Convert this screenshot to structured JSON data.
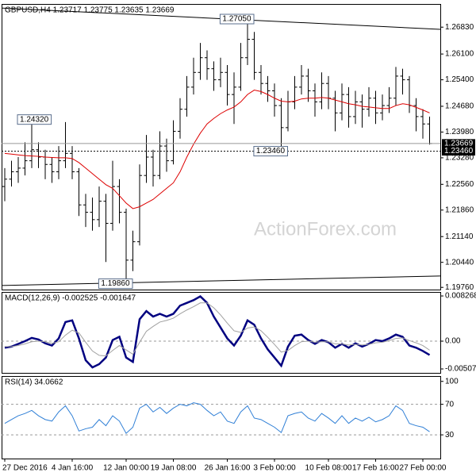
{
  "chart_data": [
    {
      "type": "ohlc",
      "title": "GBPUSD,H4  1.23717 1.23775 1.23635 1.23669",
      "categories": [
        "27 Dec 2016",
        null,
        null,
        null,
        null,
        null,
        null,
        null,
        null,
        null,
        "4 Jan 16:00",
        null,
        null,
        null,
        null,
        null,
        null,
        null,
        "12 Jan 00:00",
        null,
        null,
        null,
        null,
        null,
        null,
        "19 Jan 08:00",
        null,
        null,
        null,
        null,
        null,
        null,
        null,
        "26 Jan 16:00",
        null,
        null,
        null,
        null,
        null,
        null,
        "3 Feb 00:00",
        null,
        null,
        null,
        null,
        null,
        null,
        null,
        "10 Feb 08:00",
        null,
        null,
        null,
        null,
        null,
        null,
        "17 Feb 16:00",
        null,
        null,
        null,
        null,
        null,
        null,
        "27 Feb 00:00",
        null
      ],
      "open": [
        1.225,
        1.227,
        1.229,
        1.23,
        1.232,
        1.235,
        1.233,
        1.231,
        1.229,
        1.232,
        1.234,
        1.229,
        1.22,
        1.218,
        1.216,
        1.221,
        1.215,
        1.225,
        1.218,
        1.205,
        1.21,
        1.228,
        1.233,
        1.228,
        1.236,
        1.232,
        1.24,
        1.246,
        1.252,
        1.256,
        1.26,
        1.257,
        1.254,
        1.256,
        1.25,
        1.252,
        1.26,
        1.265,
        1.256,
        1.253,
        1.251,
        1.247,
        1.241,
        1.248,
        1.252,
        1.255,
        1.251,
        1.248,
        1.253,
        1.249,
        1.245,
        1.25,
        1.244,
        1.248,
        1.246,
        1.249,
        1.245,
        1.247,
        1.249,
        1.255,
        1.254,
        1.247,
        1.244,
        1.242
      ],
      "high": [
        1.23,
        1.232,
        1.233,
        1.237,
        1.2432,
        1.237,
        1.235,
        1.233,
        1.236,
        1.2425,
        1.236,
        1.23,
        1.223,
        1.222,
        1.225,
        1.223,
        1.232,
        1.227,
        1.219,
        1.213,
        1.231,
        1.239,
        1.235,
        1.24,
        1.238,
        1.243,
        1.249,
        1.255,
        1.26,
        1.264,
        1.262,
        1.259,
        1.26,
        1.258,
        1.256,
        1.264,
        1.2705,
        1.267,
        1.258,
        1.255,
        1.253,
        1.249,
        1.251,
        1.255,
        1.258,
        1.257,
        1.253,
        1.256,
        1.255,
        1.251,
        1.253,
        1.252,
        1.251,
        1.25,
        1.252,
        1.251,
        1.25,
        1.252,
        1.2575,
        1.257,
        1.255,
        1.249,
        1.246,
        1.244
      ],
      "low": [
        1.221,
        1.225,
        1.226,
        1.228,
        1.23,
        1.23,
        1.227,
        1.226,
        1.227,
        1.23,
        1.227,
        1.217,
        1.214,
        1.213,
        1.214,
        1.2045,
        1.213,
        1.215,
        1.1986,
        1.202,
        1.209,
        1.226,
        1.225,
        1.227,
        1.229,
        1.231,
        1.238,
        1.244,
        1.25,
        1.254,
        1.254,
        1.251,
        1.252,
        1.247,
        1.242,
        1.251,
        1.258,
        1.254,
        1.25,
        1.248,
        1.244,
        1.2346,
        1.24,
        1.246,
        1.25,
        1.248,
        1.244,
        1.246,
        1.246,
        1.24,
        1.243,
        1.241,
        1.242,
        1.241,
        1.244,
        1.242,
        1.243,
        1.245,
        1.247,
        1.25,
        1.245,
        1.24,
        1.238,
        1.2364
      ],
      "close": [
        1.227,
        1.229,
        1.23,
        1.232,
        1.235,
        1.233,
        1.231,
        1.229,
        1.232,
        1.234,
        1.229,
        1.22,
        1.218,
        1.216,
        1.221,
        1.215,
        1.225,
        1.218,
        1.205,
        1.21,
        1.228,
        1.233,
        1.228,
        1.236,
        1.232,
        1.24,
        1.246,
        1.252,
        1.256,
        1.26,
        1.257,
        1.254,
        1.256,
        1.25,
        1.252,
        1.26,
        1.265,
        1.256,
        1.253,
        1.251,
        1.247,
        1.241,
        1.248,
        1.252,
        1.255,
        1.251,
        1.248,
        1.253,
        1.249,
        1.245,
        1.25,
        1.244,
        1.248,
        1.246,
        1.249,
        1.245,
        1.247,
        1.249,
        1.255,
        1.254,
        1.247,
        1.244,
        1.242,
        1.23669
      ],
      "color": "#000000",
      "series": [
        {
          "color": "#dd0000",
          "values": [
            1.234,
            1.2338,
            1.2336,
            1.2334,
            1.2333,
            1.2332,
            1.233,
            1.2329,
            1.2328,
            1.2328,
            1.2326,
            1.2315,
            1.23,
            1.2285,
            1.227,
            1.2255,
            1.2245,
            1.2225,
            1.2205,
            1.219,
            1.2195,
            1.2205,
            1.2215,
            1.223,
            1.2245,
            1.226,
            1.229,
            1.233,
            1.2365,
            1.2395,
            1.242,
            1.2435,
            1.2448,
            1.2458,
            1.2466,
            1.248,
            1.25,
            1.2512,
            1.2508,
            1.25,
            1.249,
            1.2482,
            1.248,
            1.2482,
            1.2488,
            1.249,
            1.249,
            1.2492,
            1.249,
            1.2485,
            1.248,
            1.2475,
            1.2472,
            1.2468,
            1.2466,
            1.2464,
            1.2462,
            1.2462,
            1.247,
            1.2475,
            1.2472,
            1.2465,
            1.2458,
            1.245
          ]
        }
      ],
      "ylim": [
        1.197,
        1.2746
      ],
      "yticks": [
        {
          "value": 1.2683,
          "label": "1.26830"
        },
        {
          "value": 1.261,
          "label": "1.26100"
        },
        {
          "value": 1.254,
          "label": "1.25400"
        },
        {
          "value": 1.2468,
          "label": "1.24680"
        },
        {
          "value": 1.2398,
          "label": "1.23980"
        },
        {
          "value": 1.2328,
          "label": "1.23280"
        },
        {
          "value": 1.2256,
          "label": "1.22560"
        },
        {
          "value": 1.2186,
          "label": "1.21860"
        },
        {
          "value": 1.2114,
          "label": "1.21140"
        },
        {
          "value": 1.2044,
          "label": "1.20440"
        },
        {
          "value": 1.1976,
          "label": "1.19760"
        }
      ],
      "current": {
        "value": 1.23669,
        "label": "1.23669"
      },
      "level": {
        "value": 1.2346,
        "label": "1.23460"
      },
      "annotations": [
        {
          "index": 36,
          "value": 1.2705,
          "label": "1.27050"
        },
        {
          "index": 4,
          "value": 1.2432,
          "label": "1.24320"
        },
        {
          "index": 41,
          "value": 1.2346,
          "label": "1.23460"
        },
        {
          "index": 18,
          "value": 1.1986,
          "label": "1.19860"
        }
      ],
      "trendlines": [
        [
          1.2735,
          1.2677
        ],
        [
          1.1981,
          1.2007
        ]
      ],
      "watermark": "ActionForex.com"
    },
    {
      "type": "line",
      "title": "MACD(12,26,9) -0.002525 -0.001647",
      "series": [
        {
          "color": "#000080",
          "width": 2.5,
          "values": [
            -0.0012,
            -0.001,
            -0.0005,
            0.0,
            0.0006,
            0.0003,
            -0.0004,
            -0.0008,
            0.0005,
            0.0035,
            0.0038,
            0.0005,
            -0.0035,
            -0.0048,
            -0.0042,
            -0.003,
            0.0002,
            0.0008,
            -0.003,
            -0.0038,
            0.004,
            0.0055,
            0.0045,
            0.005,
            0.0045,
            0.005,
            0.0065,
            0.007,
            0.0075,
            0.0082,
            0.007,
            0.0045,
            0.0025,
            0.0005,
            -0.0008,
            0.001,
            0.0038,
            0.003,
            0.0005,
            -0.0015,
            -0.003,
            -0.0045,
            -0.001,
            0.001,
            0.0012,
            0.0002,
            -0.0005,
            0.0002,
            -0.0002,
            -0.0012,
            -0.0005,
            -0.0012,
            -0.0004,
            -0.001,
            -0.0005,
            0.0002,
            0.0,
            0.0005,
            0.0012,
            0.0008,
            -0.0008,
            -0.0012,
            -0.0018,
            -0.002525
          ]
        },
        {
          "color": "#a0a0a0",
          "width": 1,
          "values": [
            -0.001,
            -0.001,
            -0.0008,
            -0.0005,
            -0.0001,
            0.0,
            -0.0001,
            -0.0004,
            -0.0001,
            0.0011,
            0.002,
            0.0015,
            -0.0002,
            -0.0018,
            -0.0026,
            -0.0027,
            -0.0017,
            -0.0008,
            -0.0016,
            -0.0024,
            -0.0002,
            0.0018,
            0.0027,
            0.0035,
            0.0038,
            0.0042,
            0.005,
            0.0057,
            0.0063,
            0.007,
            0.007,
            0.0061,
            0.0048,
            0.0033,
            0.0019,
            0.0016,
            0.0024,
            0.0026,
            0.0019,
            0.0007,
            -0.0006,
            -0.002,
            -0.0017,
            -0.0008,
            -0.0001,
            0.0,
            -0.0002,
            -0.0001,
            -0.0001,
            -0.0005,
            -0.0005,
            -0.0007,
            -0.0006,
            -0.0007,
            -0.0006,
            -0.0003,
            -0.0002,
            0.0001,
            0.0005,
            0.0006,
            0.0001,
            -0.0003,
            -0.0008,
            -0.001647
          ]
        }
      ],
      "ylim": [
        -0.0058,
        0.009
      ],
      "yticks": [
        0.008268,
        {
          "value": 0,
          "label": "0.00"
        },
        -0.005078
      ],
      "levels": [
        0
      ]
    },
    {
      "type": "line",
      "title": "RSI(14) 34.0662",
      "series": [
        {
          "color": "#2f7fd6",
          "width": 1,
          "values": [
            45,
            50,
            55,
            58,
            62,
            55,
            50,
            48,
            60,
            68,
            55,
            35,
            38,
            40,
            50,
            42,
            55,
            48,
            32,
            40,
            65,
            70,
            60,
            66,
            58,
            65,
            70,
            68,
            72,
            70,
            62,
            55,
            60,
            48,
            45,
            60,
            68,
            52,
            50,
            45,
            40,
            33,
            55,
            58,
            60,
            52,
            48,
            58,
            52,
            45,
            55,
            45,
            52,
            48,
            53,
            47,
            50,
            55,
            68,
            62,
            45,
            42,
            40,
            34.0662
          ]
        }
      ],
      "ylim": [
        0,
        107
      ],
      "yticks": [
        100,
        70,
        30
      ],
      "levels": [
        70,
        30
      ]
    }
  ]
}
